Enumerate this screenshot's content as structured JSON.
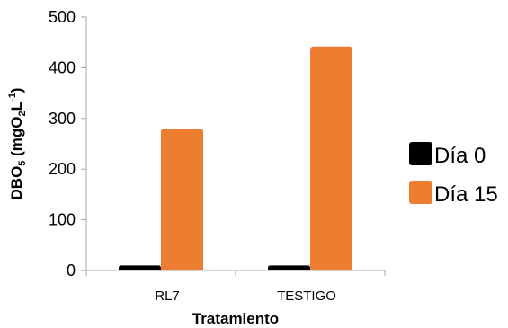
{
  "chart_data": {
    "type": "bar",
    "categories": [
      "RL7",
      "TESTIGO"
    ],
    "series": [
      {
        "name": "Día 0",
        "values": [
          10,
          10
        ],
        "color": "#000000"
      },
      {
        "name": "Día 15",
        "values": [
          280,
          442
        ],
        "color": "#ED7D31"
      }
    ],
    "xlabel": "Tratamiento",
    "ylabel": {
      "base": "DBO",
      "sub1": "5",
      "mid1": " (mgO",
      "sub2": "2",
      "mid2": "L",
      "sup": "-1",
      "end": ")"
    },
    "ylim": [
      0,
      500
    ],
    "yticks": [
      "0",
      "100",
      "200",
      "300",
      "400",
      "500"
    ],
    "grid": false,
    "legend": "right"
  }
}
